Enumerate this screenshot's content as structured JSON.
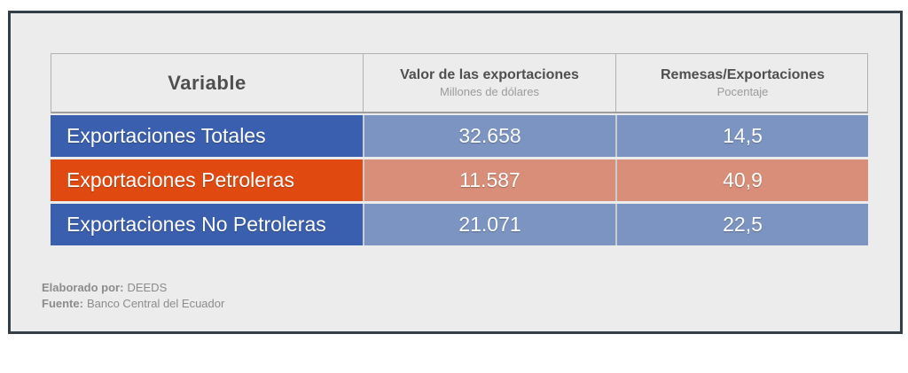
{
  "chart_data": {
    "type": "table",
    "columns": [
      {
        "title": "Variable",
        "subtitle": ""
      },
      {
        "title": "Valor de las exportaciones",
        "subtitle": "Millones de dólares"
      },
      {
        "title": "Remesas/Exportaciones",
        "subtitle": "Pocentaje"
      }
    ],
    "rows": [
      {
        "variable": "Exportaciones Totales",
        "valor_exportaciones": "32.658",
        "remesas_exportaciones": "14,5"
      },
      {
        "variable": "Exportaciones Petroleras",
        "valor_exportaciones": "11.587",
        "remesas_exportaciones": "40,9"
      },
      {
        "variable": "Exportaciones No Petroleras",
        "valor_exportaciones": "21.071",
        "remesas_exportaciones": "22,5"
      }
    ]
  },
  "table": {
    "header": {
      "variable": "Variable",
      "col2_title": "Valor de las exportaciones",
      "col2_sub": "Millones de dólares",
      "col3_title": "Remesas/Exportaciones",
      "col3_sub": "Pocentaje"
    },
    "rows": [
      {
        "label": "Exportaciones Totales",
        "valor": "32.658",
        "remesas": "14,5",
        "theme": "blue"
      },
      {
        "label": "Exportaciones Petroleras",
        "valor": "11.587",
        "remesas": "40,9",
        "theme": "orange"
      },
      {
        "label": "Exportaciones No Petroleras",
        "valor": "21.071",
        "remesas": "22,5",
        "theme": "blue"
      }
    ]
  },
  "footer": {
    "elaborado_label": "Elaborado por:",
    "elaborado_value": "DEEDS",
    "fuente_label": "Fuente:",
    "fuente_value": "Banco Central del Ecuador"
  },
  "colors": {
    "card-border": "#333e46",
    "card-bg": "#ebeceb",
    "header-text": "#4f4f4f",
    "subtitle-text": "#9b9b9b",
    "blue-strong": "#3a5fae",
    "blue-light": "#7b94c1",
    "orange-strong": "#e04a10",
    "orange-light": "#d88e78",
    "footer-text": "#8c8c8c"
  }
}
